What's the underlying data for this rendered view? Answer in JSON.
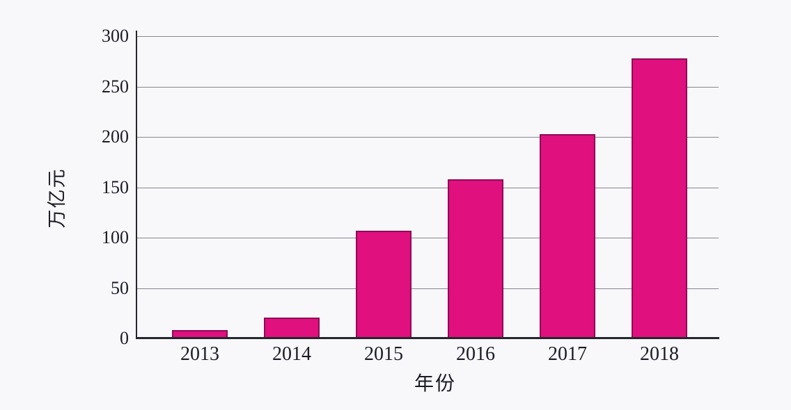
{
  "chart_data": {
    "type": "bar",
    "title": "",
    "categories": [
      "2013",
      "2014",
      "2015",
      "2016",
      "2017",
      "2018"
    ],
    "values": [
      8,
      21,
      107,
      158,
      203,
      278
    ],
    "xlabel": "年份",
    "ylabel": "万亿元",
    "ylim": [
      0,
      300
    ],
    "yticks": [
      0,
      50,
      100,
      150,
      200,
      250,
      300
    ],
    "grid": true,
    "legend_position": "none",
    "colors": {
      "bar_fill": "#e0107e",
      "bar_border": "#8e0a58",
      "gridline": "#85858d",
      "axis": "#26262e",
      "text": "#1b1b24",
      "background": "#f8f8fb"
    }
  }
}
